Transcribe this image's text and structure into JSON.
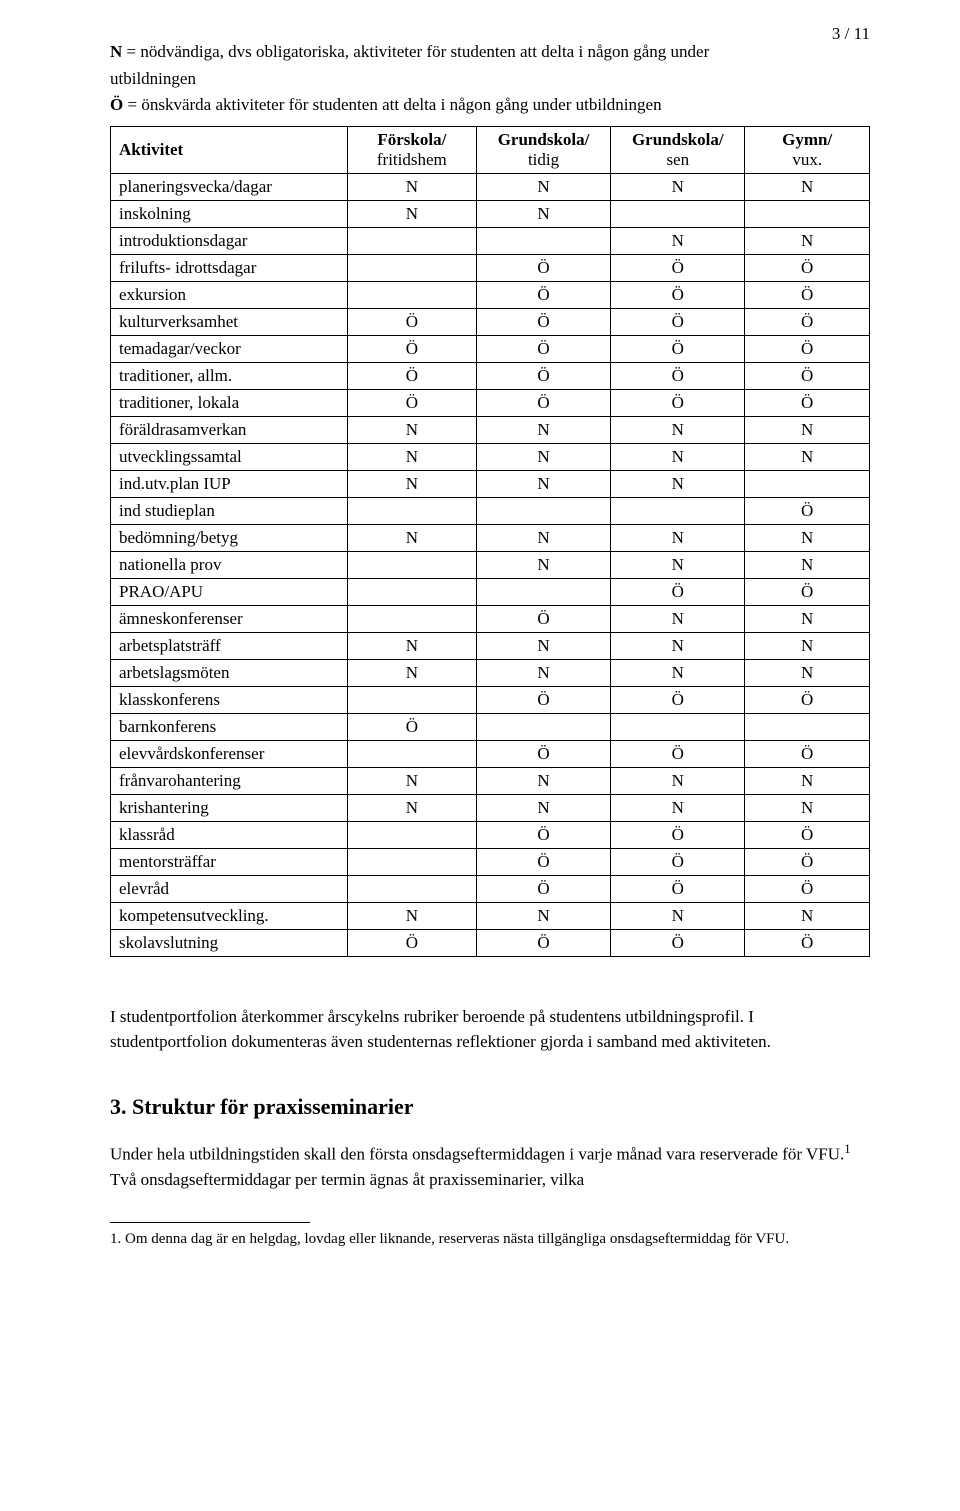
{
  "page_number": "3 / 11",
  "intro": {
    "n_prefix": "N",
    "n_text": " = nödvändiga, dvs obligatoriska, aktiviteter för studenten att delta i någon gång under",
    "n_text_2": "utbildningen",
    "o_prefix": "Ö",
    "o_text": " = önskvärda aktiviteter för studenten att delta i någon gång under utbildningen"
  },
  "table": {
    "header_labels": {
      "activity": "Aktivitet",
      "col1_top": "Förskola/",
      "col1_bot": "fritidshem",
      "col2_top": "Grundskola/",
      "col2_bot": "tidig",
      "col3_top": "Grundskola/",
      "col3_bot": "sen",
      "col4_top": "Gymn/",
      "col4_bot": "vux."
    },
    "rows": [
      {
        "label": "planeringsvecka/dagar",
        "v": [
          "N",
          "N",
          "N",
          "N"
        ]
      },
      {
        "label": "inskolning",
        "v": [
          "N",
          "N",
          "",
          ""
        ]
      },
      {
        "label": "introduktionsdagar",
        "v": [
          "",
          "",
          "N",
          "N"
        ]
      },
      {
        "label": "frilufts- idrottsdagar",
        "v": [
          "",
          "Ö",
          "Ö",
          "Ö"
        ]
      },
      {
        "label": "exkursion",
        "v": [
          "",
          "Ö",
          "Ö",
          "Ö"
        ]
      },
      {
        "label": "kulturverksamhet",
        "v": [
          "Ö",
          "Ö",
          "Ö",
          "Ö"
        ]
      },
      {
        "label": "temadagar/veckor",
        "v": [
          "Ö",
          "Ö",
          "Ö",
          "Ö"
        ]
      },
      {
        "label": "traditioner, allm.",
        "v": [
          "Ö",
          "Ö",
          "Ö",
          "Ö"
        ]
      },
      {
        "label": "traditioner, lokala",
        "v": [
          "Ö",
          "Ö",
          "Ö",
          "Ö"
        ]
      },
      {
        "label": "föräldrasamverkan",
        "v": [
          "N",
          "N",
          "N",
          "N"
        ]
      },
      {
        "label": "utvecklingssamtal",
        "v": [
          "N",
          "N",
          "N",
          "N"
        ]
      },
      {
        "label": "ind.utv.plan IUP",
        "v": [
          "N",
          "N",
          "N",
          ""
        ]
      },
      {
        "label": "ind studieplan",
        "v": [
          "",
          "",
          "",
          "Ö"
        ]
      },
      {
        "label": "bedömning/betyg",
        "v": [
          "N",
          "N",
          "N",
          "N"
        ]
      },
      {
        "label": "nationella prov",
        "v": [
          "",
          "N",
          "N",
          "N"
        ]
      },
      {
        "label": "PRAO/APU",
        "v": [
          "",
          "",
          "Ö",
          "Ö"
        ]
      },
      {
        "label": "ämneskonferenser",
        "v": [
          "",
          "Ö",
          "N",
          "N"
        ]
      },
      {
        "label": "arbetsplatsträff",
        "v": [
          "N",
          "N",
          "N",
          "N"
        ]
      },
      {
        "label": "arbetslagsmöten",
        "v": [
          "N",
          "N",
          "N",
          "N"
        ]
      },
      {
        "label": "klasskonferens",
        "v": [
          "",
          "Ö",
          "Ö",
          "Ö"
        ]
      },
      {
        "label": "barnkonferens",
        "v": [
          "Ö",
          "",
          "",
          ""
        ]
      },
      {
        "label": "elevvårdskonferenser",
        "v": [
          "",
          "Ö",
          "Ö",
          "Ö"
        ]
      },
      {
        "label": "frånvarohantering",
        "v": [
          "N",
          "N",
          "N",
          "N"
        ]
      },
      {
        "label": "krishantering",
        "v": [
          "N",
          "N",
          "N",
          "N"
        ]
      },
      {
        "label": "klassråd",
        "v": [
          "",
          "Ö",
          "Ö",
          "Ö"
        ]
      },
      {
        "label": "mentorsträffar",
        "v": [
          "",
          "Ö",
          "Ö",
          "Ö"
        ]
      },
      {
        "label": "elevråd",
        "v": [
          "",
          "Ö",
          "Ö",
          "Ö"
        ]
      },
      {
        "label": "kompetensutveckling.",
        "v": [
          "N",
          "N",
          "N",
          "N"
        ]
      },
      {
        "label": "skolavslutning",
        "v": [
          "Ö",
          "Ö",
          "Ö",
          "Ö"
        ]
      }
    ]
  },
  "paragraph_after_table": "I studentportfolion återkommer årscykelns rubriker beroende på studentens utbildningsprofil. I studentportfolion dokumenteras även studenternas reflektioner gjorda i samband med aktiviteten.",
  "section_heading": "3. Struktur för praxisseminarier",
  "section_paragraph_1": "Under hela utbildningstiden skall den första onsdagseftermiddagen i varje månad vara reserverade för VFU.",
  "section_paragraph_1_sup": "1",
  "section_paragraph_1_after": " Två onsdagseftermiddagar per termin ägnas åt praxisseminarier, vilka",
  "footnote_num": "1.",
  "footnote_text": " Om denna dag är en helgdag, lovdag eller liknande, reserveras nästa tillgängliga onsdagseftermiddag för VFU."
}
